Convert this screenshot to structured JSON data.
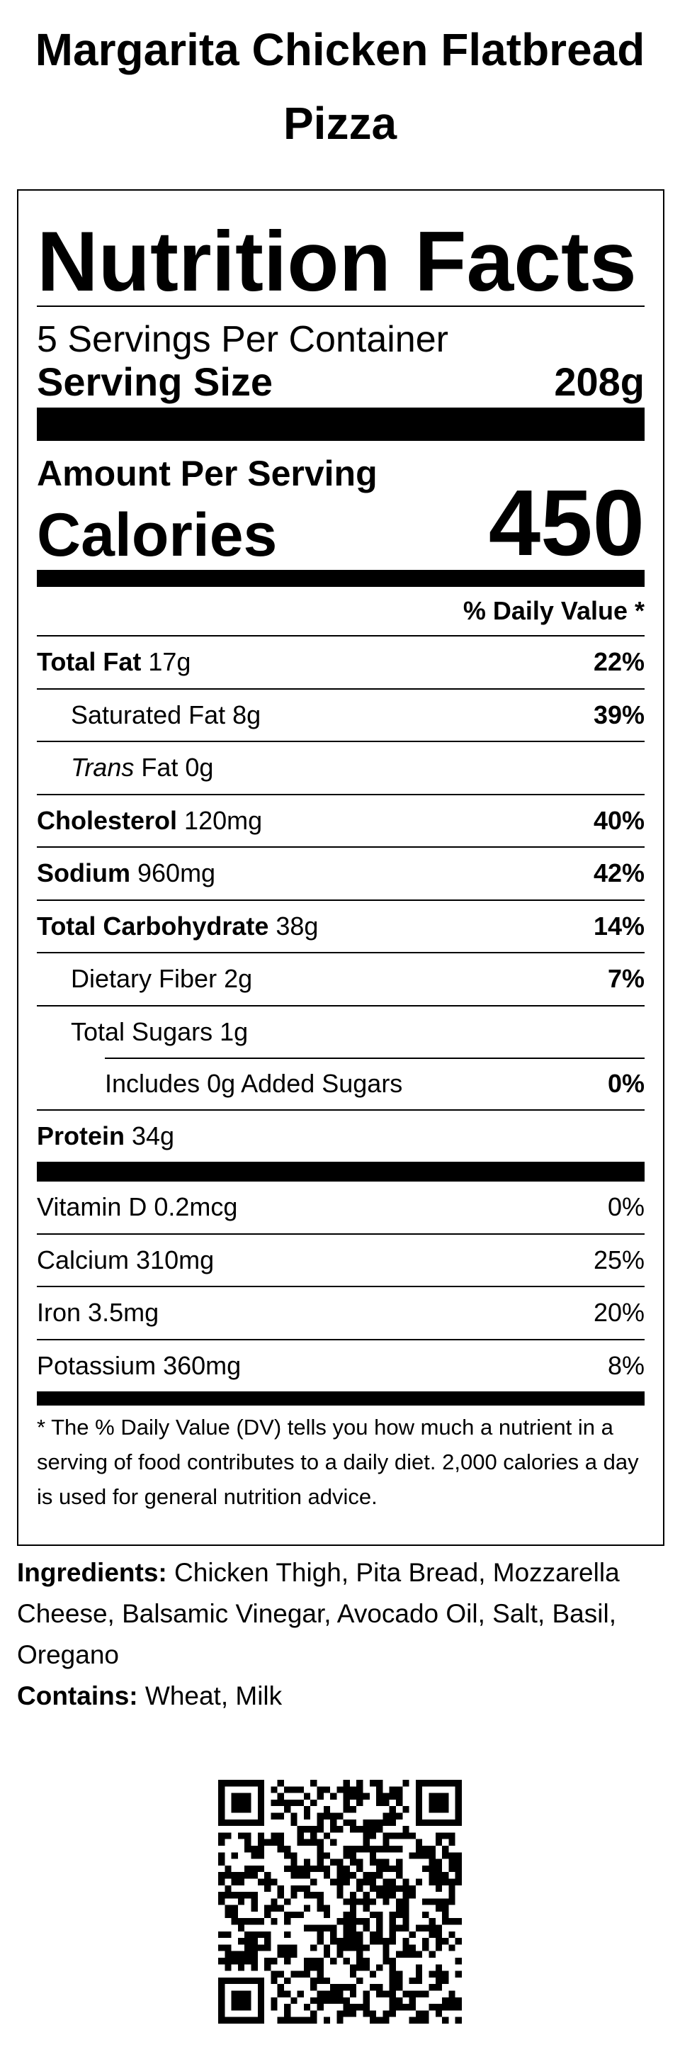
{
  "title": "Margarita Chicken Flatbread Pizza",
  "label": {
    "heading": "Nutrition Facts",
    "servings": "5 Servings Per Container",
    "serving_size_label": "Serving Size",
    "serving_size": "208g",
    "amount_per_serving": "Amount Per Serving",
    "calories_label": "Calories",
    "calories": "450",
    "daily_value_header": "% Daily Value *",
    "nutrients": [
      {
        "name": "Total Fat",
        "amount": "17g",
        "dv": "22%"
      },
      {
        "name": "Saturated Fat",
        "amount": "8g",
        "dv": "39%"
      },
      {
        "name_italic": "Trans",
        "name": "Fat",
        "amount": "0g"
      },
      {
        "name": "Cholesterol",
        "amount": "120mg",
        "dv": "40%"
      },
      {
        "name": "Sodium",
        "amount": "960mg",
        "dv": "42%"
      },
      {
        "name": "Total Carbohydrate",
        "amount": "38g",
        "dv": "14%"
      },
      {
        "name": "Dietary Fiber",
        "amount": "2g",
        "dv": "7%"
      },
      {
        "name": "Total Sugars",
        "amount": "1g"
      },
      {
        "name": "Includes 0g Added Sugars",
        "dv": "0%"
      },
      {
        "name": "Protein",
        "amount": "34g"
      }
    ],
    "vitamins": [
      {
        "name": "Vitamin D",
        "amount": "0.2mcg",
        "dv": "0%"
      },
      {
        "name": "Calcium",
        "amount": "310mg",
        "dv": "25%"
      },
      {
        "name": "Iron",
        "amount": "3.5mg",
        "dv": "20%"
      },
      {
        "name": "Potassium",
        "amount": "360mg",
        "dv": "8%"
      }
    ],
    "footnote": "* The % Daily Value (DV) tells you how much a nutrient in a serving of food contributes to a daily diet. 2,000 calories a day is used for general nutrition advice."
  },
  "ingredients": {
    "label": "Ingredients:",
    "text": "Chicken Thigh, Pita Bread, Mozzarella Cheese, Balsamic Vinegar, Avocado Oil, Salt, Basil, Oregano"
  },
  "contains": {
    "label": "Contains:",
    "text": "Wheat, Milk"
  }
}
